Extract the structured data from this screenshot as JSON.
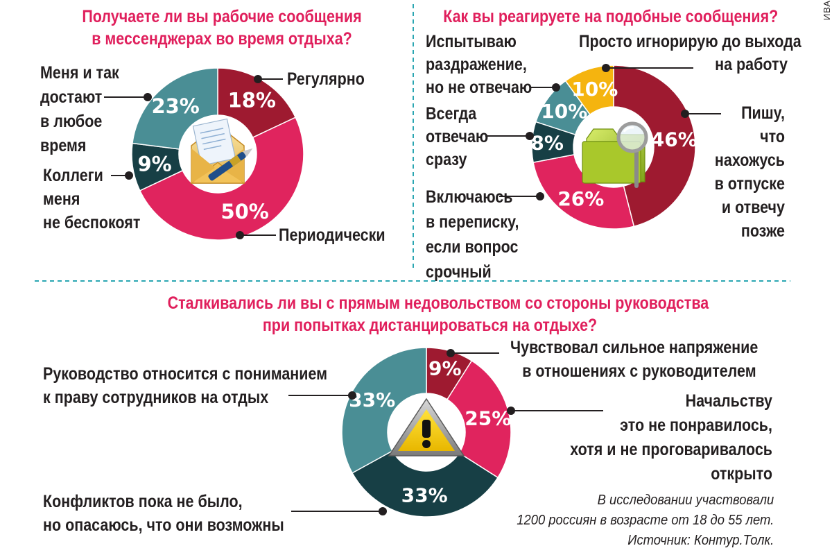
{
  "side_credit": "ИВА",
  "note": {
    "line1": "В исследовании участвовали",
    "line2": "1200 россиян в возрасте от 18 до 55 лет.",
    "line3": "Источник: Контур.Толк."
  },
  "icons": [
    "envelope-letter-pen-icon",
    "folder-magnifier-icon",
    "warning-triangle-icon"
  ],
  "colors": {
    "title": "#e01f5c",
    "crimson": "#9e1a30",
    "pink": "#e0245e",
    "teal": "#4a8e95",
    "dark_teal": "#173f45",
    "yellow": "#f5b40f"
  },
  "chart_data": [
    {
      "type": "pie",
      "title_lines": [
        "Получаете ли вы рабочие сообщения",
        "в мессенджерах во время отдыха?"
      ],
      "slices": [
        {
          "label_lines": [
            "Регулярно"
          ],
          "value": 18,
          "display": "18%",
          "color": "#9e1a30"
        },
        {
          "label_lines": [
            "Периодически"
          ],
          "value": 50,
          "display": "50%",
          "color": "#e0245e"
        },
        {
          "label_lines": [
            "Коллеги",
            "меня",
            "не беспокоят"
          ],
          "value": 9,
          "display": "9%",
          "color": "#173f45"
        },
        {
          "label_lines": [
            "Меня и так",
            "достают",
            "в любое",
            "время"
          ],
          "value": 23,
          "display": "23%",
          "color": "#4a8e95"
        }
      ]
    },
    {
      "type": "pie",
      "title_lines": [
        "Как вы реагируете на подобные сообщения?"
      ],
      "slices": [
        {
          "label_lines": [
            "Пишу,",
            "что",
            "нахожусь",
            "в отпуске",
            "и отвечу",
            "позже"
          ],
          "value": 46,
          "display": "46%",
          "color": "#9e1a30"
        },
        {
          "label_lines": [
            "Включаюсь",
            "в переписку,",
            "если вопрос",
            "срочный"
          ],
          "value": 26,
          "display": "26%",
          "color": "#e0245e"
        },
        {
          "label_lines": [
            "Всегда",
            "отвечаю",
            "сразу"
          ],
          "value": 8,
          "display": "8%",
          "color": "#173f45"
        },
        {
          "label_lines": [
            "Испытываю",
            "раздражение,",
            "но не отвечаю"
          ],
          "value": 10,
          "display": "10%",
          "color": "#4a8e95"
        },
        {
          "label_lines": [
            "Просто игнорирую до выхода",
            "на работу"
          ],
          "value": 10,
          "display": "10%",
          "color": "#f5b40f"
        }
      ]
    },
    {
      "type": "pie",
      "title_lines": [
        "Сталкивались ли вы с прямым недовольством со стороны руководства",
        "при попытках дистанцироваться на отдыхе?"
      ],
      "slices": [
        {
          "label_lines": [
            "Чувствовал сильное напряжение",
            "в отношениях с руководителем"
          ],
          "value": 9,
          "display": "9%",
          "color": "#9e1a30"
        },
        {
          "label_lines": [
            "Начальству",
            "это не понравилось,",
            "хотя и не проговаривалось",
            "открыто"
          ],
          "value": 25,
          "display": "25%",
          "color": "#e0245e"
        },
        {
          "label_lines": [
            "Конфликтов пока не было,",
            "но опасаюсь, что они возможны"
          ],
          "value": 33,
          "display": "33%",
          "color": "#173f45"
        },
        {
          "label_lines": [
            "Руководство относится с пониманием",
            "к праву сотрудников на отдых"
          ],
          "value": 33,
          "display": "33%",
          "color": "#4a8e95"
        }
      ]
    }
  ]
}
